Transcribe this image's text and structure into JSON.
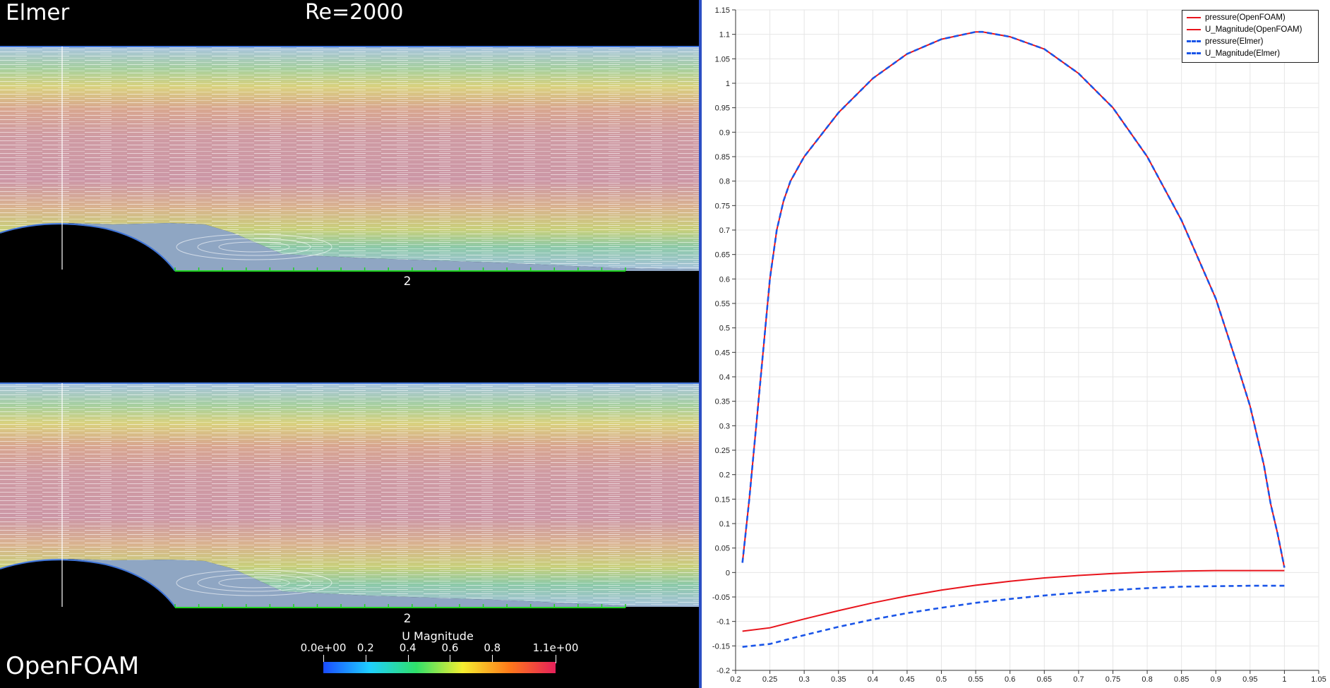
{
  "render_view": {
    "label_top": "Elmer",
    "label_bottom": "OpenFOAM",
    "re_label": "Re=2000",
    "ruler_top_label": "2",
    "ruler_bottom_label": "2",
    "colorbar": {
      "title": "U Magnitude",
      "tick_labels": [
        "0.0e+00",
        "0.2",
        "0.4",
        "0.6",
        "0.8",
        "1.1e+00"
      ],
      "tick_values": [
        0,
        0.2,
        0.4,
        0.6,
        0.8,
        1.1
      ],
      "range": [
        0,
        1.1
      ],
      "colors": [
        "#1a4cff",
        "#1fd0ff",
        "#2fe06a",
        "#f5ee30",
        "#ff7a1a",
        "#e6205a"
      ]
    }
  },
  "chart_data": {
    "type": "line",
    "title": "",
    "xlabel": "",
    "ylabel": "",
    "xlim": [
      0.2,
      1.05
    ],
    "ylim": [
      -0.2,
      1.15
    ],
    "xticks": [
      "0.2",
      "0.25",
      "0.3",
      "0.35",
      "0.4",
      "0.45",
      "0.5",
      "0.55",
      "0.6",
      "0.65",
      "0.7",
      "0.75",
      "0.8",
      "0.85",
      "0.9",
      "0.95",
      "1",
      "1.05"
    ],
    "yticks": [
      "-0.2",
      "-0.15",
      "-0.1",
      "-0.05",
      "0",
      "0.05",
      "0.1",
      "0.15",
      "0.2",
      "0.25",
      "0.3",
      "0.35",
      "0.4",
      "0.45",
      "0.5",
      "0.55",
      "0.6",
      "0.65",
      "0.7",
      "0.75",
      "0.8",
      "0.85",
      "0.9",
      "0.95",
      "1",
      "1.05",
      "1.1",
      "1.15"
    ],
    "grid": true,
    "legend_position": "top-right",
    "series": [
      {
        "name": "pressure(OpenFOAM)",
        "color": "#e8141c",
        "style": "solid",
        "x": [
          0.21,
          0.25,
          0.3,
          0.35,
          0.4,
          0.45,
          0.5,
          0.55,
          0.6,
          0.65,
          0.7,
          0.75,
          0.8,
          0.85,
          0.9,
          0.95,
          1.0
        ],
        "y": [
          -0.12,
          -0.113,
          -0.095,
          -0.078,
          -0.062,
          -0.048,
          -0.036,
          -0.026,
          -0.018,
          -0.011,
          -0.006,
          -0.002,
          0.001,
          0.003,
          0.004,
          0.004,
          0.004
        ]
      },
      {
        "name": "U_Magnitude(OpenFOAM)",
        "color": "#e8141c",
        "style": "solid",
        "x": [
          0.21,
          0.22,
          0.23,
          0.24,
          0.25,
          0.26,
          0.27,
          0.28,
          0.3,
          0.35,
          0.4,
          0.45,
          0.5,
          0.55,
          0.56,
          0.6,
          0.65,
          0.7,
          0.75,
          0.8,
          0.85,
          0.9,
          0.93,
          0.95,
          0.97,
          0.98,
          0.99,
          1.0
        ],
        "y": [
          0.02,
          0.15,
          0.3,
          0.45,
          0.6,
          0.7,
          0.76,
          0.8,
          0.85,
          0.94,
          1.01,
          1.06,
          1.09,
          1.105,
          1.105,
          1.095,
          1.07,
          1.02,
          0.95,
          0.85,
          0.72,
          0.56,
          0.43,
          0.34,
          0.22,
          0.14,
          0.08,
          0.01
        ]
      },
      {
        "name": "pressure(Elmer)",
        "color": "#1a55e8",
        "style": "dashed",
        "x": [
          0.21,
          0.25,
          0.3,
          0.35,
          0.4,
          0.45,
          0.5,
          0.55,
          0.6,
          0.65,
          0.7,
          0.75,
          0.8,
          0.85,
          0.9,
          0.95,
          1.0
        ],
        "y": [
          -0.152,
          -0.146,
          -0.128,
          -0.111,
          -0.096,
          -0.083,
          -0.072,
          -0.062,
          -0.054,
          -0.047,
          -0.041,
          -0.036,
          -0.032,
          -0.029,
          -0.028,
          -0.027,
          -0.027
        ]
      },
      {
        "name": "U_Magnitude(Elmer)",
        "color": "#1a55e8",
        "style": "dashed",
        "x": [
          0.21,
          0.22,
          0.23,
          0.24,
          0.25,
          0.26,
          0.27,
          0.28,
          0.3,
          0.35,
          0.4,
          0.45,
          0.5,
          0.55,
          0.56,
          0.6,
          0.65,
          0.7,
          0.75,
          0.8,
          0.85,
          0.9,
          0.93,
          0.95,
          0.97,
          0.98,
          0.99,
          1.0
        ],
        "y": [
          0.02,
          0.15,
          0.3,
          0.45,
          0.6,
          0.7,
          0.76,
          0.8,
          0.85,
          0.94,
          1.01,
          1.06,
          1.09,
          1.105,
          1.105,
          1.095,
          1.07,
          1.02,
          0.95,
          0.85,
          0.72,
          0.56,
          0.43,
          0.34,
          0.22,
          0.14,
          0.08,
          0.01
        ]
      }
    ]
  }
}
